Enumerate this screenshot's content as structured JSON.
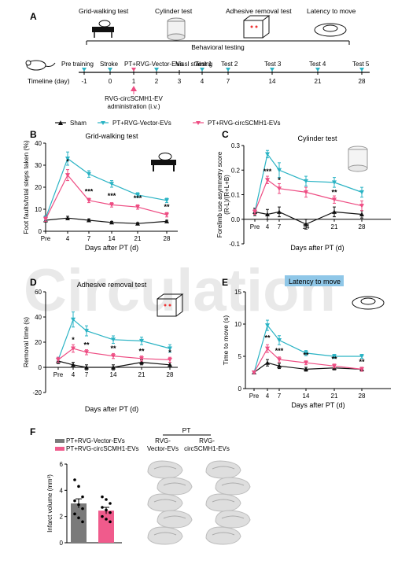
{
  "colors": {
    "sham": "#111111",
    "vector": "#2ab3c4",
    "circ": "#ee4d83",
    "bar_vector": "#7a7a7a",
    "bar_circ": "#f05b8c",
    "latency_box": "#8fc7e8"
  },
  "panel_a": {
    "letter": "A",
    "top_tests": [
      "Grid-walking test",
      "Cylinder test",
      "Adhesive removal  test",
      "Latency to move"
    ],
    "behavioral_label": "Behavioral testing",
    "timeline_label": "Timeline (day)",
    "events": [
      "Pre training",
      "Stroke",
      "PT+RVG-Vector-EVs",
      "Nissl staining",
      "Test 1",
      "Test 2",
      "Test 3",
      "Test 4",
      "Test 5"
    ],
    "days": [
      "-1",
      "0",
      "1",
      "2",
      "3",
      "4",
      "7",
      "14",
      "21",
      "28"
    ],
    "admin_line1": "RVG-circSCMH1-EV",
    "admin_line2": "administration (i.v.)"
  },
  "legend": {
    "sham": "Sham",
    "vector": "PT+RVG-Vector-EVs",
    "circ": "PT+RVG-circSCMH1-EVs"
  },
  "x_ticks": [
    "Pre",
    "4",
    "7",
    "14",
    "21",
    "28"
  ],
  "xlabel": "Days after PT (d)",
  "watermark": "Circulation",
  "chart_data": [
    {
      "type": "line",
      "panel": "B",
      "title": "Grid-walking test",
      "ylabel": "Foot faults/total steps taken (%)",
      "ylim": [
        0,
        40
      ],
      "yticks": [
        "0",
        "10",
        "20",
        "30",
        "40"
      ],
      "x": [
        "Pre",
        "4",
        "7",
        "14",
        "21",
        "28"
      ],
      "series": [
        {
          "name": "Sham",
          "values": [
            5,
            6,
            5,
            4,
            3.5,
            4.5
          ],
          "err": [
            0.8,
            0.8,
            0.6,
            0.5,
            0.4,
            0.5
          ]
        },
        {
          "name": "PT+RVG-Vector-EVs",
          "values": [
            6,
            33,
            26,
            21.5,
            16.5,
            14
          ],
          "err": [
            1,
            3,
            1.5,
            1.5,
            1,
            1
          ]
        },
        {
          "name": "PT+RVG-circSCMH1-EVs",
          "values": [
            5.5,
            25.5,
            14,
            12,
            11,
            7.5
          ],
          "err": [
            1,
            2.5,
            1,
            1,
            1,
            1
          ]
        }
      ],
      "annotations": [
        {
          "x": "4",
          "y": 30.5,
          "text": "*"
        },
        {
          "x": "7",
          "y": 17,
          "text": "***"
        },
        {
          "x": "14",
          "y": 15,
          "text": "***"
        },
        {
          "x": "21",
          "y": 14,
          "text": "***"
        },
        {
          "x": "28",
          "y": 10,
          "text": "**"
        }
      ]
    },
    {
      "type": "line",
      "panel": "C",
      "title": "Cylinder test",
      "ylabel": "Forelimb use asymmetry score (R-L)/(R+L+B)",
      "ylim": [
        -0.1,
        0.3
      ],
      "yticks": [
        "-0.1",
        "0.0",
        "0.1",
        "0.2",
        "0.3"
      ],
      "x": [
        "Pre",
        "4",
        "7",
        "14",
        "21",
        "28"
      ],
      "series": [
        {
          "name": "Sham",
          "values": [
            0.03,
            0.02,
            0.03,
            -0.02,
            0.03,
            0.02
          ],
          "err": [
            0.015,
            0.02,
            0.02,
            0.02,
            0.02,
            0.015
          ]
        },
        {
          "name": "PT+RVG-Vector-EVs",
          "values": [
            0.03,
            0.265,
            0.2,
            0.155,
            0.15,
            0.11
          ],
          "err": [
            0.01,
            0.015,
            0.03,
            0.02,
            0.02,
            0.02
          ]
        },
        {
          "name": "PT+RVG-circSCMH1-EVs",
          "values": [
            0.03,
            0.16,
            0.125,
            0.11,
            0.08,
            0.055
          ],
          "err": [
            0.01,
            0.015,
            0.02,
            0.02,
            0.015,
            0.02
          ]
        }
      ],
      "annotations": [
        {
          "x": "4",
          "y": 0.185,
          "text": "***"
        },
        {
          "x": "7",
          "y": 0.15,
          "text": "*"
        },
        {
          "x": "21",
          "y": 0.1,
          "text": "**"
        }
      ]
    },
    {
      "type": "line",
      "panel": "D",
      "title": "Adhesive removal test",
      "ylabel": "Removal time (s)",
      "ylim": [
        -20,
        60
      ],
      "yticks": [
        "-20",
        "0",
        "20",
        "40",
        "60"
      ],
      "x": [
        "Pre",
        "4",
        "7",
        "14",
        "21",
        "28"
      ],
      "series": [
        {
          "name": "Sham",
          "values": [
            5,
            2,
            0,
            0,
            4,
            2
          ],
          "err": [
            2,
            2,
            2,
            2,
            2,
            2
          ]
        },
        {
          "name": "PT+RVG-Vector-EVs",
          "values": [
            6,
            38,
            29,
            22,
            21,
            15
          ],
          "err": [
            2,
            6,
            4,
            3,
            3,
            3
          ]
        },
        {
          "name": "PT+RVG-circSCMH1-EVs",
          "values": [
            6,
            15,
            12,
            9,
            7,
            6
          ],
          "err": [
            2,
            3,
            2,
            2,
            2,
            2
          ]
        }
      ],
      "annotations": [
        {
          "x": "4",
          "y": 20,
          "text": "*"
        },
        {
          "x": "7",
          "y": 16,
          "text": "**"
        },
        {
          "x": "14",
          "y": 13,
          "text": "**"
        },
        {
          "x": "21",
          "y": 11,
          "text": "**"
        },
        {
          "x": "28",
          "y": 10,
          "text": "*"
        }
      ]
    },
    {
      "type": "line",
      "panel": "E",
      "title": "Latency to move",
      "ylabel": "Time to move (s)",
      "ylim": [
        0,
        15
      ],
      "yticks": [
        "0",
        "5",
        "10",
        "15"
      ],
      "x": [
        "Pre",
        "4",
        "7",
        "14",
        "21",
        "28"
      ],
      "series": [
        {
          "name": "Sham",
          "values": [
            2.5,
            4,
            3.5,
            3,
            3.2,
            3
          ],
          "err": [
            0.2,
            0.5,
            0.4,
            0.3,
            0.3,
            0.3
          ]
        },
        {
          "name": "PT+RVG-Vector-EVs",
          "values": [
            2.5,
            9.8,
            7.5,
            5.5,
            5,
            5
          ],
          "err": [
            0.2,
            0.8,
            0.7,
            0.4,
            0.3,
            0.3
          ]
        },
        {
          "name": "PT+RVG-circSCMH1-EVs",
          "values": [
            2.5,
            6.2,
            4.5,
            4,
            3.5,
            3
          ],
          "err": [
            0.2,
            0.6,
            0.4,
            0.3,
            0.3,
            0.3
          ]
        }
      ],
      "annotations": [
        {
          "x": "4",
          "y": 7.5,
          "text": "**"
        },
        {
          "x": "7",
          "y": 5.5,
          "text": "***"
        },
        {
          "x": "14",
          "y": 4.8,
          "text": "**"
        },
        {
          "x": "21",
          "y": 4.2,
          "text": "**"
        },
        {
          "x": "28",
          "y": 3.8,
          "text": "**"
        }
      ]
    },
    {
      "type": "bar",
      "panel": "F",
      "ylabel": "Infarct volume (mm³)",
      "ylim": [
        0,
        6
      ],
      "yticks": [
        "0",
        "2",
        "4",
        "6"
      ],
      "categories": [
        "PT+RVG-Vector-EVs",
        "PT+RVG-circSCMH1-EVs"
      ],
      "values": [
        3.0,
        2.45
      ],
      "err": [
        0.35,
        0.25
      ],
      "points": [
        [
          4.8,
          4.3,
          3.5,
          3.2,
          2.9,
          2.6,
          2.2,
          1.9,
          1.6
        ],
        [
          3.5,
          3.3,
          3.0,
          2.7,
          2.5,
          2.3,
          2.0,
          1.8,
          1.6
        ]
      ]
    }
  ],
  "panel_f": {
    "letter": "F",
    "pt_label": "PT",
    "col1_line1": "RVG-",
    "col1_line2": "Vector-EVs",
    "col2_line1": "RVG-",
    "col2_line2": "circSCMH1-EVs"
  }
}
